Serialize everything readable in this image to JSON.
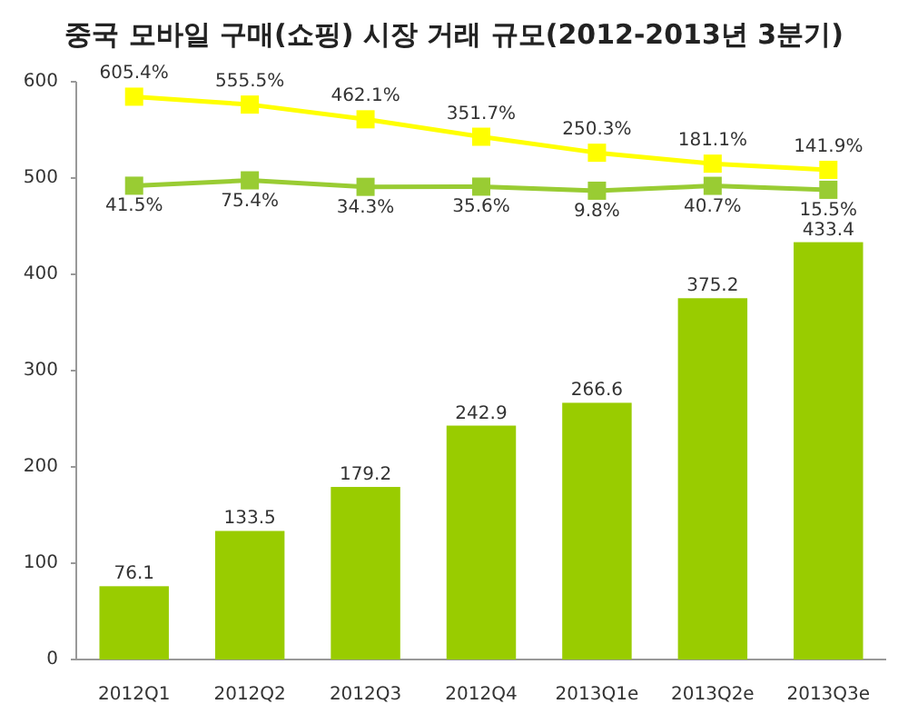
{
  "chart_data": {
    "type": "bar",
    "title": "중국 모바일 구매(쇼핑) 시장 거래 규모(2012-2013년 3분기)",
    "categories": [
      "2012Q1",
      "2012Q2",
      "2012Q3",
      "2012Q4",
      "2013Q1e",
      "2013Q2e",
      "2013Q3e"
    ],
    "series": [
      {
        "color": "#99cc00",
        "values": [
          76.1,
          133.5,
          179.2,
          242.9,
          266.6,
          375.2,
          433.4
        ]
      },
      {
        "type": "line",
        "axis": "y2",
        "color": "#ffff00",
        "values": [
          605.4,
          555.5,
          462.1,
          351.7,
          250.3,
          181.1,
          141.9
        ],
        "value_labels": [
          "605.4%",
          "555.5%",
          "462.1%",
          "351.7%",
          "250.3%",
          "181.1%",
          "141.9%"
        ]
      },
      {
        "type": "line",
        "axis": "y2",
        "color": "#99cc33",
        "values": [
          41.5,
          75.4,
          34.3,
          35.6,
          9.8,
          40.7,
          15.5
        ],
        "value_labels": [
          "41.5%",
          "75.4%",
          "34.3%",
          "35.6%",
          "9.8%",
          "40.7%",
          "15.5%"
        ]
      }
    ],
    "ylim": [
      0,
      600
    ],
    "yticks": [
      0,
      100,
      200,
      300,
      400,
      500,
      600
    ],
    "y2lim": [
      -2960,
      700
    ],
    "marker": "square",
    "line_style": "solid",
    "data_labels": true,
    "grid": false
  }
}
